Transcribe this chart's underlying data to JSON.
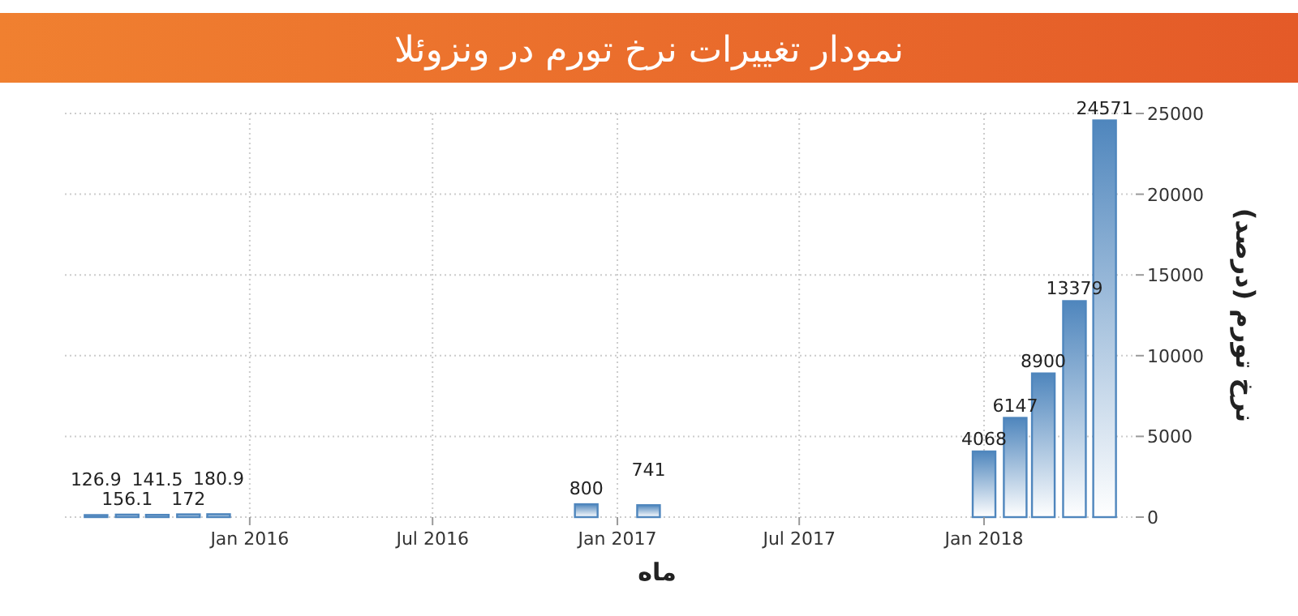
{
  "chart_data": {
    "type": "bar",
    "title": "نمودار تغییرات نرخ تورم در ونزوئلا",
    "xlabel": "ماه",
    "ylabel": "نرخ تورم (درصد)",
    "x": [
      "2015-08",
      "2015-09",
      "2015-10",
      "2015-11",
      "2015-12",
      "2016-12",
      "2017-02",
      "2018-01",
      "2018-02",
      "2018-03",
      "2018-04",
      "2018-05"
    ],
    "series": [
      {
        "color": "#4f86bd",
        "values": [
          126.9,
          156.1,
          141.5,
          172,
          180.9,
          800,
          741,
          4068,
          6147,
          8900,
          13379,
          24571
        ]
      }
    ],
    "data_labels": true,
    "xlim": [
      "2015-07",
      "2018-06"
    ],
    "xticks": [
      {
        "value": "2016-01",
        "label": "Jan 2016"
      },
      {
        "value": "2016-07",
        "label": "Jul 2016"
      },
      {
        "value": "2017-01",
        "label": "Jan 2017"
      },
      {
        "value": "2017-07",
        "label": "Jul 2017"
      },
      {
        "value": "2018-01",
        "label": "Jan 2018"
      }
    ],
    "ylim": [
      0,
      25000
    ],
    "yticks": [
      0,
      5000,
      10000,
      15000,
      20000,
      25000
    ],
    "grid": true
  }
}
